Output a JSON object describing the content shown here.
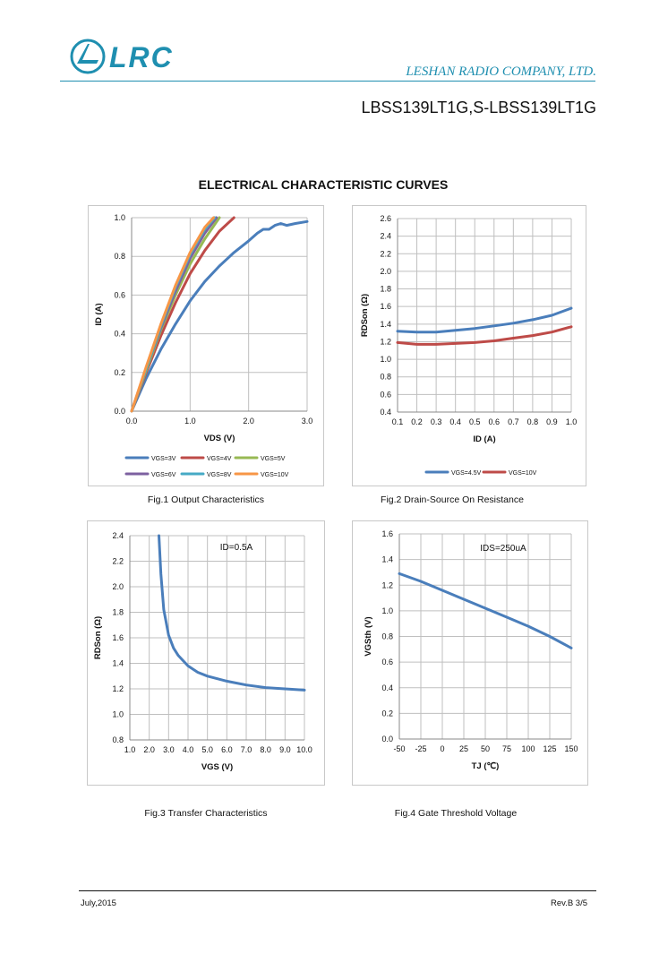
{
  "header": {
    "logo_text": "LRC",
    "company": "LESHAN RADIO COMPANY, LTD.",
    "part_number": "LBSS139LT1G,S-LBSS139LT1G"
  },
  "section_title": "ELECTRICAL CHARACTERISTIC CURVES",
  "colors": {
    "brand": "#1f8fb0",
    "grid": "#bfbfbf"
  },
  "captions": {
    "fig1": "Fig.1 Output Characteristics",
    "fig2": "Fig.2 Drain-Source On Resistance",
    "fig3": "Fig.3 Transfer Characteristics",
    "fig4": "Fig.4 Gate Threshold Voltage"
  },
  "footer": {
    "date": "July,2015",
    "revision": "Rev.B 3/5"
  },
  "chart_data": [
    {
      "id": "fig1",
      "type": "line",
      "title": "",
      "xlabel": "VDS (V)",
      "ylabel": "ID (A)",
      "xlim": [
        0,
        3
      ],
      "ylim": [
        0,
        1
      ],
      "xticks": [
        0,
        1,
        2,
        3
      ],
      "yticks": [
        0,
        0.2,
        0.4,
        0.6,
        0.8,
        1.0
      ],
      "xtick_labels": [
        "0.0",
        "1.0",
        "2.0",
        "3.0"
      ],
      "ytick_labels": [
        "0.0",
        "0.2",
        "0.4",
        "0.6",
        "0.8",
        "1.0"
      ],
      "legend_position": "bottom",
      "series": [
        {
          "name": "VGS=3V",
          "color": "#4a7ebb",
          "x": [
            0,
            0.25,
            0.5,
            0.75,
            1.0,
            1.25,
            1.5,
            1.75,
            2.0,
            2.15,
            2.25,
            2.35,
            2.45,
            2.55,
            2.65,
            2.8,
            3.0
          ],
          "y": [
            0,
            0.17,
            0.32,
            0.45,
            0.57,
            0.67,
            0.75,
            0.82,
            0.88,
            0.92,
            0.94,
            0.94,
            0.96,
            0.97,
            0.96,
            0.97,
            0.98
          ]
        },
        {
          "name": "VGS=4V",
          "color": "#be4b48",
          "x": [
            0,
            0.25,
            0.5,
            0.75,
            1.0,
            1.25,
            1.5,
            1.75
          ],
          "y": [
            0,
            0.2,
            0.39,
            0.56,
            0.71,
            0.83,
            0.93,
            1.0
          ]
        },
        {
          "name": "VGS=5V",
          "color": "#98b954",
          "x": [
            0,
            0.25,
            0.5,
            0.75,
            1.0,
            1.25,
            1.5
          ],
          "y": [
            0,
            0.21,
            0.42,
            0.6,
            0.76,
            0.89,
            1.0
          ]
        },
        {
          "name": "VGS=6V",
          "color": "#7d60a0",
          "x": [
            0,
            0.25,
            0.5,
            0.75,
            1.0,
            1.25,
            1.45
          ],
          "y": [
            0,
            0.22,
            0.43,
            0.62,
            0.79,
            0.92,
            1.0
          ]
        },
        {
          "name": "VGS=8V",
          "color": "#46aac5",
          "x": [
            0,
            0.25,
            0.5,
            0.75,
            1.0,
            1.25,
            1.42
          ],
          "y": [
            0,
            0.22,
            0.44,
            0.64,
            0.81,
            0.94,
            1.0
          ]
        },
        {
          "name": "VGS=10V",
          "color": "#f79646",
          "x": [
            0,
            0.25,
            0.5,
            0.75,
            1.0,
            1.25,
            1.4
          ],
          "y": [
            0,
            0.23,
            0.45,
            0.65,
            0.82,
            0.95,
            1.0
          ]
        }
      ]
    },
    {
      "id": "fig2",
      "type": "line",
      "title": "",
      "xlabel": "ID (A)",
      "ylabel": "RDSon (Ω)",
      "xlim": [
        0.1,
        1.0
      ],
      "ylim": [
        0.4,
        2.6
      ],
      "xticks": [
        0.1,
        0.2,
        0.3,
        0.4,
        0.5,
        0.6,
        0.7,
        0.8,
        0.9,
        1.0
      ],
      "yticks": [
        0.4,
        0.6,
        0.8,
        1.0,
        1.2,
        1.4,
        1.6,
        1.8,
        2.0,
        2.2,
        2.4,
        2.6
      ],
      "xtick_labels": [
        "0.1",
        "0.2",
        "0.3",
        "0.4",
        "0.5",
        "0.6",
        "0.7",
        "0.8",
        "0.9",
        "1.0"
      ],
      "ytick_labels": [
        "0.4",
        "0.6",
        "0.8",
        "1.0",
        "1.2",
        "1.4",
        "1.6",
        "1.8",
        "2.0",
        "2.2",
        "2.4",
        "2.6"
      ],
      "legend_position": "bottom",
      "series": [
        {
          "name": "VGS=4.5V",
          "color": "#4a7ebb",
          "x": [
            0.1,
            0.2,
            0.3,
            0.4,
            0.5,
            0.6,
            0.7,
            0.8,
            0.9,
            1.0
          ],
          "y": [
            1.32,
            1.31,
            1.31,
            1.33,
            1.35,
            1.38,
            1.41,
            1.45,
            1.5,
            1.58
          ]
        },
        {
          "name": "VGS=10V",
          "color": "#be4b48",
          "x": [
            0.1,
            0.2,
            0.3,
            0.4,
            0.5,
            0.6,
            0.7,
            0.8,
            0.9,
            1.0
          ],
          "y": [
            1.19,
            1.17,
            1.17,
            1.18,
            1.19,
            1.21,
            1.24,
            1.27,
            1.31,
            1.37
          ]
        }
      ]
    },
    {
      "id": "fig3",
      "type": "line",
      "title": "",
      "annotation": "ID=0.5A",
      "xlabel": "VGS (V)",
      "ylabel": "RDSon (Ω)",
      "xlim": [
        1,
        10
      ],
      "ylim": [
        0.8,
        2.4
      ],
      "xticks": [
        1,
        2,
        3,
        4,
        5,
        6,
        7,
        8,
        9,
        10
      ],
      "yticks": [
        0.8,
        1.0,
        1.2,
        1.4,
        1.6,
        1.8,
        2.0,
        2.2,
        2.4
      ],
      "xtick_labels": [
        "1.0",
        "2.0",
        "3.0",
        "4.0",
        "5.0",
        "6.0",
        "7.0",
        "8.0",
        "9.0",
        "10.0"
      ],
      "ytick_labels": [
        "0.8",
        "1.0",
        "1.2",
        "1.4",
        "1.6",
        "1.8",
        "2.0",
        "2.2",
        "2.4"
      ],
      "series": [
        {
          "name": "RDSon",
          "color": "#4a7ebb",
          "x": [
            2.5,
            2.6,
            2.75,
            3.0,
            3.25,
            3.5,
            4.0,
            4.5,
            5.0,
            6.0,
            7.0,
            8.0,
            9.0,
            10.0
          ],
          "y": [
            2.4,
            2.1,
            1.82,
            1.62,
            1.52,
            1.46,
            1.38,
            1.33,
            1.3,
            1.26,
            1.23,
            1.21,
            1.2,
            1.19
          ]
        }
      ]
    },
    {
      "id": "fig4",
      "type": "line",
      "title": "",
      "annotation": "IDS=250uA",
      "xlabel": "TJ (℃)",
      "ylabel": "VGSth (V)",
      "xlim": [
        -50,
        150
      ],
      "ylim": [
        0,
        1.6
      ],
      "xticks": [
        -50,
        -25,
        0,
        25,
        50,
        75,
        100,
        125,
        150
      ],
      "yticks": [
        0,
        0.2,
        0.4,
        0.6,
        0.8,
        1.0,
        1.2,
        1.4,
        1.6
      ],
      "xtick_labels": [
        "-50",
        "-25",
        "0",
        "25",
        "50",
        "75",
        "100",
        "125",
        "150"
      ],
      "ytick_labels": [
        "0.0",
        "0.2",
        "0.4",
        "0.6",
        "0.8",
        "1.0",
        "1.2",
        "1.4",
        "1.6"
      ],
      "series": [
        {
          "name": "VGSth",
          "color": "#4a7ebb",
          "x": [
            -50,
            -25,
            0,
            25,
            50,
            75,
            100,
            125,
            150
          ],
          "y": [
            1.29,
            1.23,
            1.16,
            1.09,
            1.02,
            0.95,
            0.88,
            0.8,
            0.71
          ]
        }
      ]
    }
  ]
}
